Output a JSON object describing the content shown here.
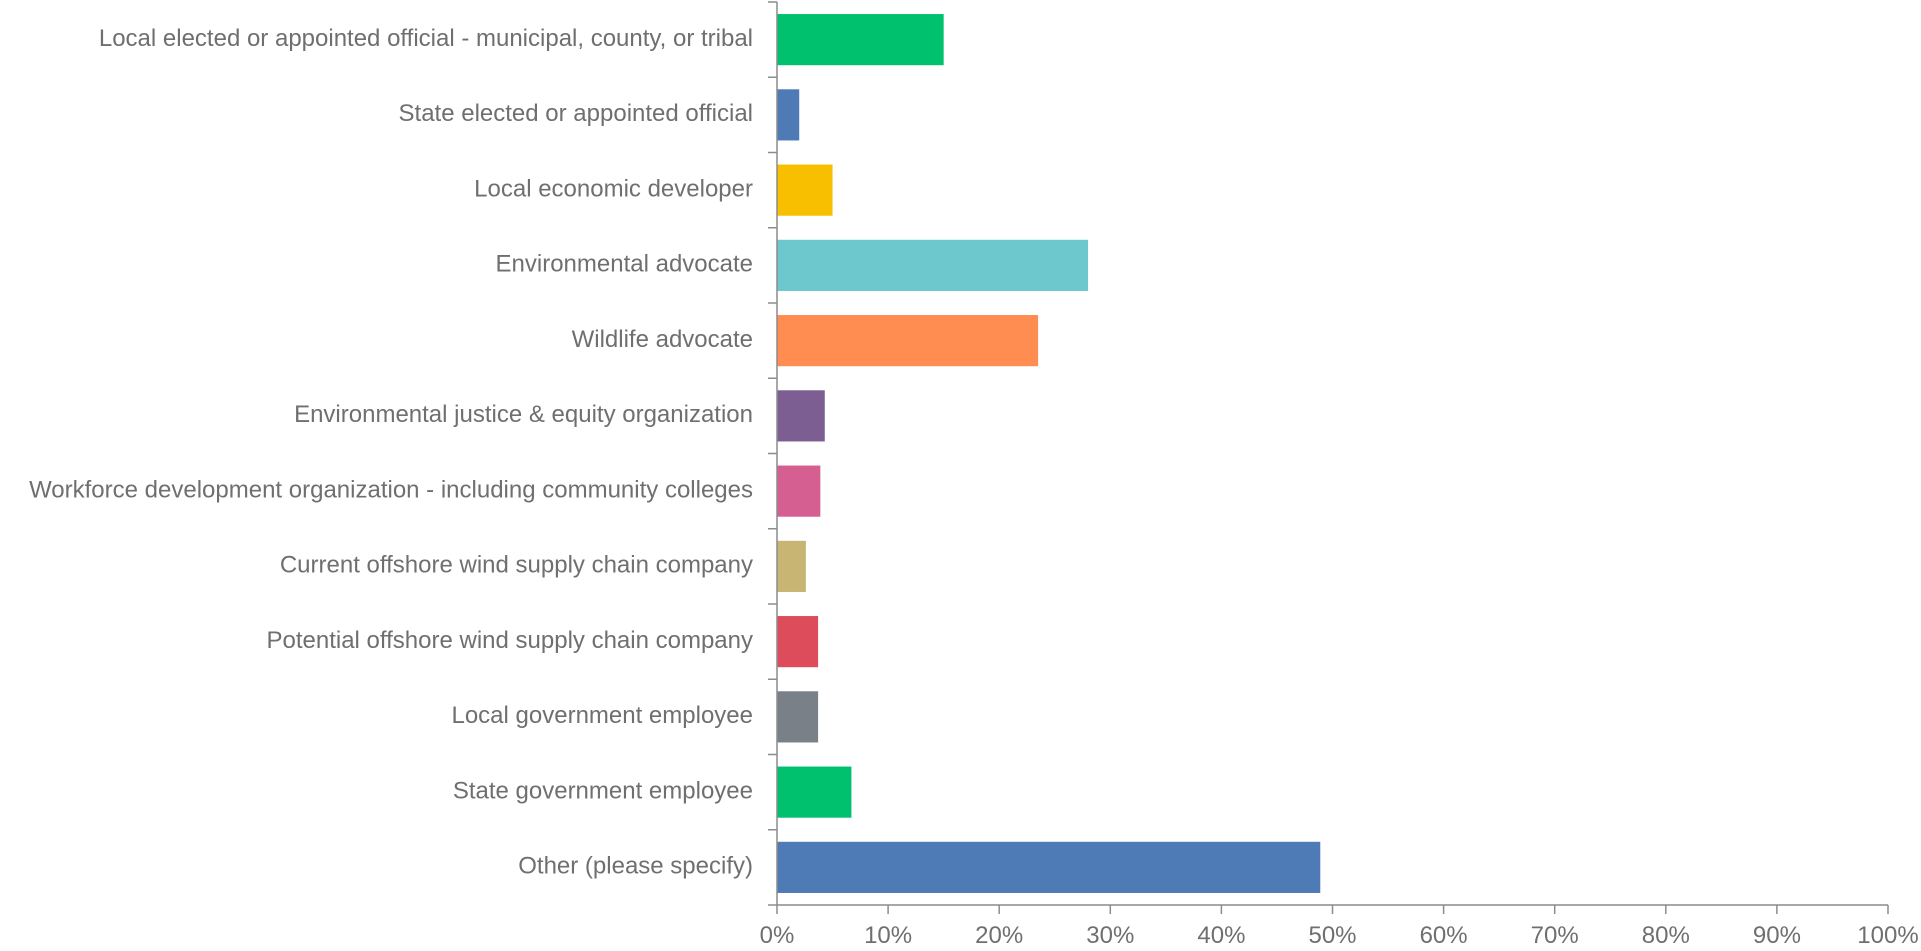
{
  "chart_data": {
    "type": "bar",
    "orientation": "horizontal",
    "title": "",
    "xlabel": "",
    "ylabel": "",
    "xlim": [
      0,
      100
    ],
    "x_tick_labels": [
      "0%",
      "10%",
      "20%",
      "30%",
      "40%",
      "50%",
      "60%",
      "70%",
      "80%",
      "90%",
      "100%"
    ],
    "grid": false,
    "legend": "none",
    "categories": [
      "Local elected or appointed official - municipal, county, or tribal",
      "State elected or appointed official",
      "Local economic developer",
      "Environmental advocate",
      "Wildlife advocate",
      "Environmental justice & equity organization",
      "Workforce development organization - including community colleges",
      "Current offshore wind supply chain company",
      "Potential offshore wind supply chain company",
      "Local government employee",
      "State government employee",
      "Other (please specify)"
    ],
    "values": [
      15.0,
      2.0,
      5.0,
      28.0,
      23.5,
      4.3,
      3.9,
      2.6,
      3.7,
      3.7,
      6.7,
      48.9
    ],
    "unit": "%",
    "colors": [
      "#00c16e",
      "#4e7ab5",
      "#f8be00",
      "#6cc8cc",
      "#ff8c50",
      "#7c5e93",
      "#d55f91",
      "#c8b473",
      "#dd4c5b",
      "#798087",
      "#00c16e",
      "#4e7ab5"
    ]
  }
}
